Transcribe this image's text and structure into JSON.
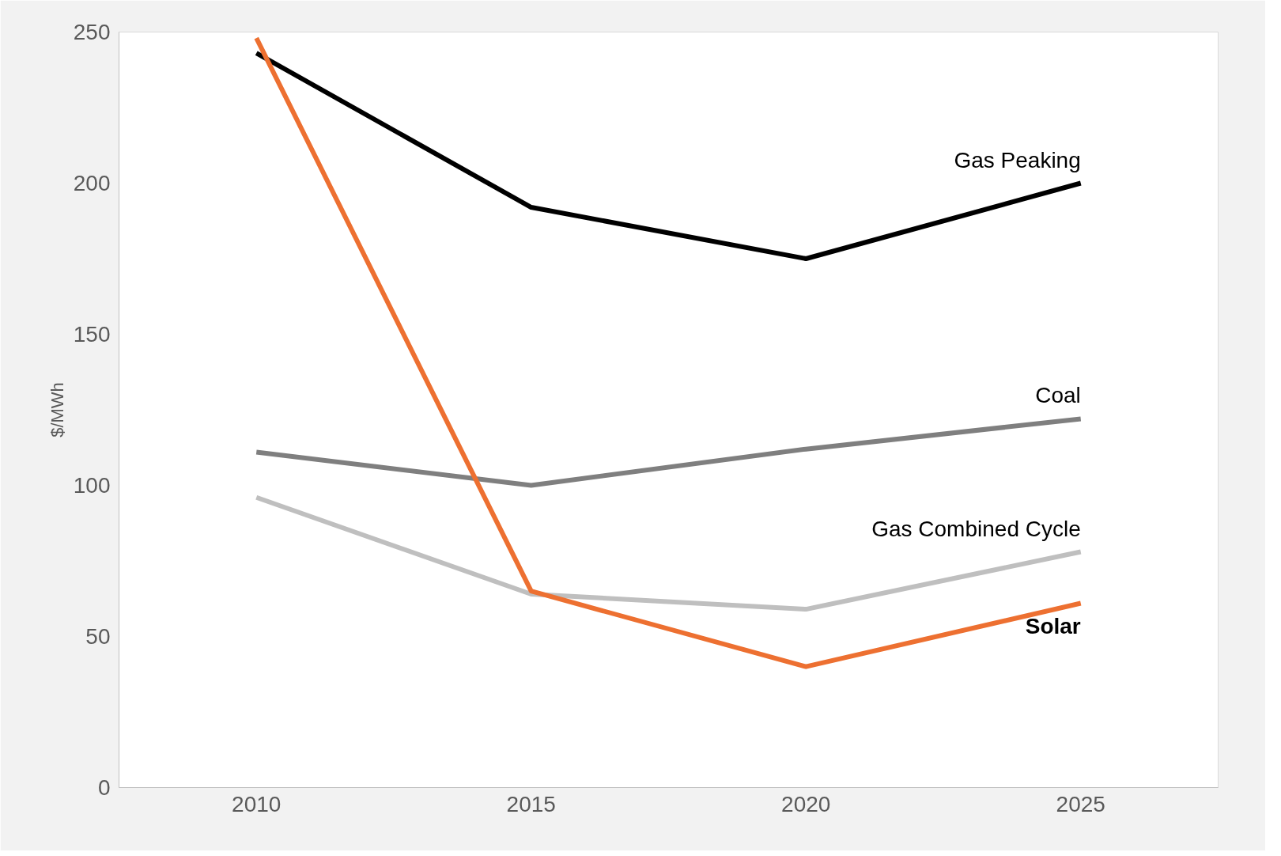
{
  "chart_data": {
    "type": "line",
    "ylabel": "$/MWh",
    "categories": [
      "2010",
      "2015",
      "2020",
      "2025"
    ],
    "ylim": [
      0,
      250
    ],
    "yticks": [
      0,
      50,
      100,
      150,
      200,
      250
    ],
    "grid": false,
    "legend": false,
    "series": [
      {
        "name": "Gas Peaking",
        "color": "#000000",
        "values": [
          243,
          192,
          175,
          200
        ]
      },
      {
        "name": "Coal",
        "color": "#7f7f7f",
        "values": [
          111,
          100,
          112,
          122
        ]
      },
      {
        "name": "Gas Combined Cycle",
        "color": "#bfbfbf",
        "values": [
          96,
          64,
          59,
          78
        ]
      },
      {
        "name": "Solar",
        "color": "#ed7031",
        "values": [
          248,
          65,
          40,
          61
        ]
      }
    ]
  }
}
